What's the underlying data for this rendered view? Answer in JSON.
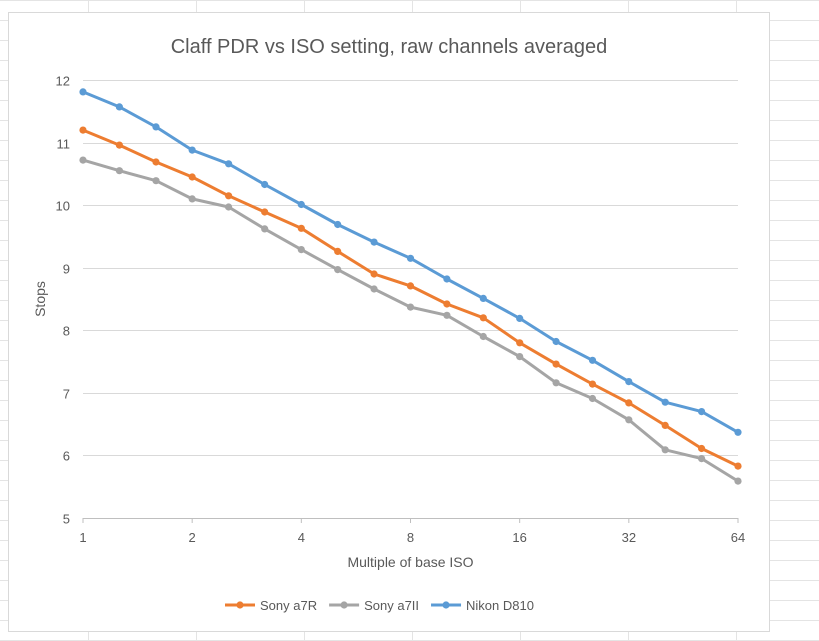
{
  "chart_data": {
    "type": "line",
    "title": "Claff PDR vs ISO setting, raw channels averaged",
    "xlabel": "Multiple of base ISO",
    "ylabel": "Stops",
    "x_scale": "log2",
    "xlim": [
      1,
      64
    ],
    "ylim": [
      5,
      12
    ],
    "x_ticks": [
      1,
      2,
      4,
      8,
      16,
      32,
      64
    ],
    "x_tick_labels": [
      "1",
      "2",
      "4",
      "8",
      "16",
      "32",
      "64"
    ],
    "y_ticks": [
      5,
      6,
      7,
      8,
      9,
      10,
      11,
      12
    ],
    "y_tick_labels": [
      "5",
      "6",
      "7",
      "8",
      "9",
      "10",
      "11",
      "12"
    ],
    "grid": "horizontal",
    "legend_position": "bottom",
    "x": [
      1,
      1.26,
      1.59,
      2,
      2.52,
      3.17,
      4,
      5.04,
      6.35,
      8,
      10.08,
      12.7,
      16,
      20.16,
      25.4,
      32,
      40.3,
      50.8,
      64
    ],
    "series": [
      {
        "name": "Sony a7R",
        "color": "#ED7D31",
        "values": [
          11.2,
          10.96,
          10.69,
          10.45,
          10.15,
          9.89,
          9.63,
          9.26,
          8.9,
          8.71,
          8.42,
          8.2,
          7.8,
          7.46,
          7.14,
          6.84,
          6.48,
          6.11,
          5.83
        ]
      },
      {
        "name": "Sony a7II",
        "color": "#A5A5A5",
        "values": [
          10.72,
          10.55,
          10.39,
          10.1,
          9.97,
          9.62,
          9.29,
          8.97,
          8.66,
          8.37,
          8.24,
          7.9,
          7.58,
          7.16,
          6.91,
          6.57,
          6.09,
          5.95,
          5.59
        ]
      },
      {
        "name": "Nikon D810",
        "color": "#5B9BD5",
        "values": [
          11.81,
          11.57,
          11.25,
          10.88,
          10.66,
          10.33,
          10.01,
          9.69,
          9.41,
          9.15,
          8.82,
          8.51,
          8.19,
          7.82,
          7.52,
          7.18,
          6.85,
          6.7,
          6.37
        ]
      }
    ]
  }
}
